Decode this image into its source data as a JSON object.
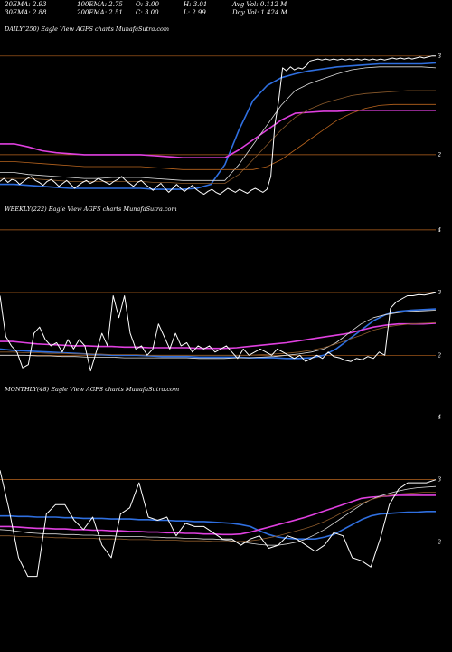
{
  "header": {
    "row1": [
      {
        "key": "20ema",
        "text": "20EMA: 2.93"
      },
      {
        "key": "100ema",
        "text": "100EMA: 2.75"
      },
      {
        "key": "open",
        "text": "O: 3.00"
      },
      {
        "key": "high",
        "text": "H: 3.01"
      },
      {
        "key": "avgvol",
        "text": "Avg Vol: 0.112  M"
      }
    ],
    "row2": [
      {
        "key": "30ema",
        "text": "30EMA: 2.88"
      },
      {
        "key": "200ema",
        "text": "200EMA: 2.51"
      },
      {
        "key": "close",
        "text": "C: 3.00"
      },
      {
        "key": "low",
        "text": "L: 2.99"
      },
      {
        "key": "dayvol",
        "text": "Day Vol: 1.424  M"
      }
    ]
  },
  "panels": [
    {
      "id": "daily",
      "label": "DAILY(250) Eagle   View  AGFS charts MunafaSutra.com"
    },
    {
      "id": "weekly",
      "label": "WEEKLY(222) Eagle   View  AGFS charts MunafaSutra.com"
    },
    {
      "id": "monthly",
      "label": "MONTHLY(48) Eagle   View  AGFS charts MunafaSutra.com"
    }
  ],
  "colors": {
    "background": "#000000",
    "price": "#ffffff",
    "ema_blue": "#2f6fe0",
    "ema_magenta": "#e040e0",
    "ema_white": "#dddddd",
    "ema_brown": "#8b5a2b",
    "ema_orange": "#b8641e",
    "gridline": "#b8641e"
  },
  "chart_data": [
    {
      "type": "line",
      "title": "DAILY(250) Eagle   View  AGFS charts MunafaSutra.com",
      "yticks": [
        "3",
        "2"
      ],
      "ylim": [
        1.55,
        3.2
      ],
      "n_points": 250,
      "series": [
        {
          "role": "price",
          "values": [
            1.73,
            1.76,
            1.72,
            1.75,
            1.74,
            1.7,
            1.73,
            1.76,
            1.78,
            1.74,
            1.72,
            1.69,
            1.73,
            1.75,
            1.72,
            1.68,
            1.71,
            1.74,
            1.7,
            1.66,
            1.69,
            1.72,
            1.74,
            1.71,
            1.73,
            1.76,
            1.74,
            1.72,
            1.7,
            1.73,
            1.75,
            1.78,
            1.74,
            1.71,
            1.68,
            1.72,
            1.74,
            1.7,
            1.67,
            1.64,
            1.68,
            1.71,
            1.66,
            1.62,
            1.66,
            1.7,
            1.66,
            1.63,
            1.66,
            1.69,
            1.65,
            1.62,
            1.6,
            1.63,
            1.65,
            1.62,
            1.6,
            1.63,
            1.66,
            1.64,
            1.62,
            1.65,
            1.63,
            1.61,
            1.64,
            1.66,
            1.64,
            1.62,
            1.65,
            1.78,
            2.3,
            2.55,
            2.88,
            2.85,
            2.89,
            2.86,
            2.88,
            2.87,
            2.9,
            2.95,
            2.96,
            2.97,
            2.96,
            2.97,
            2.96,
            2.97,
            2.96,
            2.97,
            2.96,
            2.97,
            2.96,
            2.97,
            2.96,
            2.97,
            2.96,
            2.97,
            2.96,
            2.97,
            2.96,
            2.97,
            2.98,
            2.97,
            2.98,
            2.97,
            2.98,
            2.97,
            2.98,
            2.99,
            2.98,
            2.99,
            3.0,
            3.0
          ]
        },
        {
          "role": "ema_blue",
          "values": [
            1.7,
            1.7,
            1.69,
            1.68,
            1.67,
            1.66,
            1.66,
            1.66,
            1.66,
            1.66,
            1.66,
            1.65,
            1.65,
            1.65,
            1.66,
            1.7,
            1.9,
            2.25,
            2.55,
            2.7,
            2.78,
            2.82,
            2.85,
            2.87,
            2.89,
            2.9,
            2.91,
            2.92,
            2.92,
            2.92,
            2.92,
            2.93
          ]
        },
        {
          "role": "ema_magenta",
          "values": [
            2.11,
            2.11,
            2.08,
            2.04,
            2.02,
            2.01,
            2.0,
            2.0,
            2.0,
            2.0,
            2.0,
            1.99,
            1.98,
            1.97,
            1.97,
            1.97,
            1.97,
            2.05,
            2.15,
            2.25,
            2.35,
            2.42,
            2.43,
            2.44,
            2.44,
            2.45,
            2.45,
            2.45,
            2.45,
            2.45,
            2.45,
            2.45
          ]
        },
        {
          "role": "ema_white",
          "values": [
            1.82,
            1.82,
            1.8,
            1.79,
            1.78,
            1.77,
            1.76,
            1.76,
            1.77,
            1.77,
            1.77,
            1.76,
            1.75,
            1.74,
            1.74,
            1.74,
            1.74,
            1.9,
            2.1,
            2.3,
            2.5,
            2.65,
            2.72,
            2.77,
            2.82,
            2.86,
            2.88,
            2.89,
            2.89,
            2.89,
            2.89,
            2.88
          ]
        },
        {
          "role": "ema_brown",
          "values": [
            1.76,
            1.76,
            1.76,
            1.75,
            1.74,
            1.73,
            1.73,
            1.73,
            1.73,
            1.73,
            1.73,
            1.72,
            1.72,
            1.71,
            1.71,
            1.71,
            1.71,
            1.8,
            1.95,
            2.1,
            2.25,
            2.38,
            2.46,
            2.52,
            2.56,
            2.6,
            2.62,
            2.63,
            2.64,
            2.65,
            2.65,
            2.65
          ]
        },
        {
          "role": "ema_orange",
          "values": [
            1.93,
            1.93,
            1.92,
            1.91,
            1.9,
            1.89,
            1.88,
            1.88,
            1.88,
            1.88,
            1.88,
            1.87,
            1.86,
            1.85,
            1.85,
            1.85,
            1.85,
            1.85,
            1.85,
            1.88,
            1.95,
            2.05,
            2.15,
            2.25,
            2.35,
            2.42,
            2.47,
            2.5,
            2.51,
            2.51,
            2.51,
            2.51
          ]
        }
      ]
    },
    {
      "type": "line",
      "title": "WEEKLY(222) Eagle   View  AGFS charts MunafaSutra.com",
      "yticks": [
        "4",
        "3",
        "2"
      ],
      "ylim": [
        1.6,
        4.2
      ],
      "series": [
        {
          "role": "price",
          "values": [
            2.95,
            2.3,
            2.15,
            2.05,
            1.8,
            1.85,
            2.35,
            2.45,
            2.25,
            2.15,
            2.2,
            2.05,
            2.25,
            2.1,
            2.25,
            2.15,
            1.75,
            2.05,
            2.35,
            2.15,
            2.95,
            2.6,
            2.95,
            2.35,
            2.1,
            2.15,
            2.0,
            2.1,
            2.5,
            2.3,
            2.1,
            2.35,
            2.15,
            2.2,
            2.05,
            2.15,
            2.1,
            2.15,
            2.05,
            2.1,
            2.15,
            2.05,
            1.95,
            2.1,
            2.0,
            2.05,
            2.1,
            2.05,
            2.0,
            2.1,
            2.05,
            2.0,
            1.95,
            2.0,
            1.9,
            1.95,
            2.0,
            1.95,
            2.05,
            1.98,
            1.96,
            1.92,
            1.9,
            1.95,
            1.93,
            1.98,
            1.95,
            2.05,
            2.0,
            2.75,
            2.85,
            2.9,
            2.95,
            2.95,
            2.97,
            2.96,
            2.98,
            3.0
          ]
        },
        {
          "role": "ema_blue",
          "values": [
            2.1,
            2.08,
            2.07,
            2.06,
            2.05,
            2.04,
            2.03,
            2.02,
            2.01,
            2.0,
            2.0,
            2.0,
            1.99,
            1.98,
            1.98,
            1.98,
            1.97,
            1.97,
            1.97,
            1.97,
            1.96,
            1.96,
            1.96,
            1.95,
            1.95,
            1.96,
            2.0,
            2.1,
            2.25,
            2.4,
            2.55,
            2.65,
            2.7,
            2.72,
            2.73,
            2.74
          ]
        },
        {
          "role": "ema_magenta",
          "values": [
            2.22,
            2.22,
            2.2,
            2.18,
            2.17,
            2.16,
            2.15,
            2.15,
            2.14,
            2.14,
            2.13,
            2.13,
            2.12,
            2.12,
            2.12,
            2.12,
            2.11,
            2.11,
            2.11,
            2.12,
            2.14,
            2.16,
            2.18,
            2.2,
            2.23,
            2.26,
            2.29,
            2.32,
            2.35,
            2.4,
            2.45,
            2.48,
            2.5,
            2.5,
            2.5,
            2.51
          ]
        },
        {
          "role": "ema_white",
          "values": [
            2.0,
            2.0,
            2.0,
            1.99,
            1.99,
            1.98,
            1.98,
            1.97,
            1.97,
            1.97,
            1.96,
            1.96,
            1.96,
            1.96,
            1.96,
            1.96,
            1.95,
            1.95,
            1.95,
            1.96,
            1.96,
            1.97,
            1.98,
            2.0,
            2.02,
            2.05,
            2.1,
            2.2,
            2.35,
            2.5,
            2.6,
            2.65,
            2.68,
            2.7,
            2.71,
            2.72
          ]
        },
        {
          "role": "ema_brown",
          "values": [
            2.05,
            2.05,
            2.04,
            2.04,
            2.03,
            2.03,
            2.02,
            2.02,
            2.02,
            2.01,
            2.01,
            2.01,
            2.0,
            2.0,
            2.0,
            2.0,
            2.0,
            2.0,
            2.0,
            2.0,
            2.0,
            2.01,
            2.02,
            2.03,
            2.05,
            2.08,
            2.12,
            2.18,
            2.25,
            2.32,
            2.4,
            2.45,
            2.48,
            2.5,
            2.51,
            2.52
          ]
        }
      ]
    },
    {
      "type": "line",
      "title": "MONTHLY(48) Eagle   View  AGFS charts MunafaSutra.com",
      "yticks": [
        "4",
        "3",
        "2"
      ],
      "ylim": [
        1.4,
        4.3
      ],
      "series": [
        {
          "role": "price",
          "values": [
            3.15,
            2.5,
            1.75,
            1.45,
            1.45,
            2.45,
            2.6,
            2.6,
            2.35,
            2.2,
            2.4,
            1.95,
            1.75,
            2.45,
            2.55,
            2.95,
            2.4,
            2.35,
            2.4,
            2.1,
            2.3,
            2.25,
            2.25,
            2.15,
            2.05,
            2.05,
            1.95,
            2.05,
            2.1,
            1.9,
            1.95,
            2.1,
            2.05,
            1.95,
            1.85,
            1.95,
            2.15,
            2.1,
            1.75,
            1.7,
            1.6,
            2.05,
            2.6,
            2.85,
            2.95,
            2.95,
            2.95,
            3.0
          ]
        },
        {
          "role": "ema_blue",
          "values": [
            2.42,
            2.42,
            2.41,
            2.41,
            2.4,
            2.4,
            2.4,
            2.39,
            2.39,
            2.38,
            2.38,
            2.38,
            2.37,
            2.37,
            2.37,
            2.36,
            2.36,
            2.35,
            2.35,
            2.34,
            2.34,
            2.33,
            2.33,
            2.32,
            2.31,
            2.3,
            2.28,
            2.25,
            2.18,
            2.12,
            2.08,
            2.06,
            2.05,
            2.05,
            2.05,
            2.08,
            2.12,
            2.2,
            2.28,
            2.36,
            2.42,
            2.45,
            2.46,
            2.47,
            2.48,
            2.48,
            2.49,
            2.49
          ]
        },
        {
          "role": "ema_magenta",
          "values": [
            2.25,
            2.25,
            2.24,
            2.23,
            2.22,
            2.22,
            2.21,
            2.21,
            2.2,
            2.2,
            2.19,
            2.19,
            2.18,
            2.18,
            2.17,
            2.17,
            2.16,
            2.16,
            2.15,
            2.15,
            2.14,
            2.14,
            2.13,
            2.13,
            2.12,
            2.12,
            2.13,
            2.16,
            2.2,
            2.24,
            2.28,
            2.32,
            2.36,
            2.4,
            2.45,
            2.5,
            2.55,
            2.6,
            2.65,
            2.7,
            2.72,
            2.73,
            2.74,
            2.75,
            2.75,
            2.75,
            2.75,
            2.75
          ]
        },
        {
          "role": "ema_white",
          "values": [
            2.2,
            2.19,
            2.17,
            2.15,
            2.14,
            2.13,
            2.13,
            2.12,
            2.12,
            2.11,
            2.11,
            2.1,
            2.1,
            2.09,
            2.09,
            2.09,
            2.08,
            2.08,
            2.07,
            2.07,
            2.06,
            2.06,
            2.05,
            2.05,
            2.04,
            2.02,
            2.0,
            1.98,
            1.96,
            1.95,
            1.95,
            1.97,
            2.0,
            2.05,
            2.12,
            2.2,
            2.3,
            2.4,
            2.5,
            2.6,
            2.68,
            2.74,
            2.78,
            2.82,
            2.85,
            2.87,
            2.88,
            2.89
          ]
        },
        {
          "role": "ema_brown",
          "values": [
            2.1,
            2.1,
            2.09,
            2.09,
            2.08,
            2.08,
            2.07,
            2.07,
            2.06,
            2.06,
            2.06,
            2.05,
            2.05,
            2.05,
            2.04,
            2.04,
            2.04,
            2.03,
            2.03,
            2.03,
            2.02,
            2.02,
            2.02,
            2.01,
            2.01,
            2.01,
            2.01,
            2.02,
            2.04,
            2.07,
            2.1,
            2.14,
            2.18,
            2.22,
            2.27,
            2.33,
            2.4,
            2.48,
            2.55,
            2.62,
            2.68,
            2.72,
            2.75,
            2.77,
            2.78,
            2.79,
            2.8,
            2.8
          ]
        }
      ]
    }
  ]
}
